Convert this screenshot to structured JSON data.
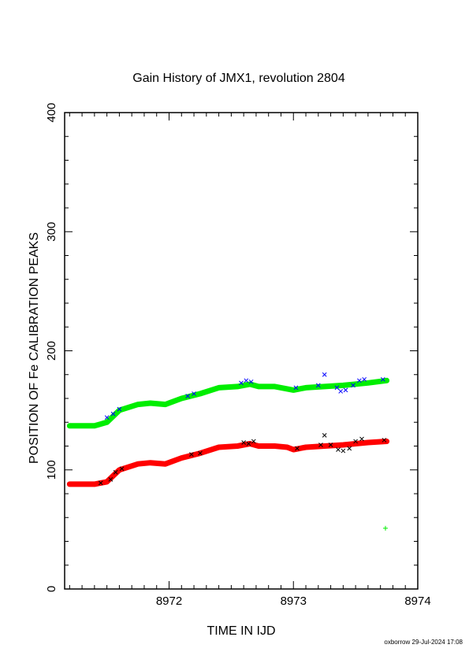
{
  "chart_data": {
    "type": "scatter",
    "title": "Gain History of JMX1, revolution 2804",
    "xlabel": "TIME IN IJD",
    "ylabel": "POSITION OF Fe CALIBRATION PEAKS",
    "footer": "oxborrow 29-Jul-2024 17:08",
    "xlim": [
      8971.16,
      8974.0
    ],
    "ylim": [
      0,
      400
    ],
    "xticks": [
      8972,
      8973,
      8974
    ],
    "xtick_labels": [
      "8972",
      "8973",
      "8974"
    ],
    "yticks": [
      0,
      100,
      200,
      300,
      400
    ],
    "ytick_labels": [
      "0",
      "100",
      "200",
      "300",
      "400"
    ],
    "series": [
      {
        "color": "#00ee00",
        "marker": "line",
        "x": [
          8971.2,
          8971.4,
          8971.5,
          8971.6,
          8971.75,
          8971.85,
          8971.97,
          8972.1,
          8972.25,
          8972.4,
          8972.55,
          8972.65,
          8972.72,
          8972.85,
          8972.95,
          8973.0,
          8973.1,
          8973.25,
          8973.4,
          8973.6,
          8973.75
        ],
        "values": [
          137,
          137,
          140,
          150,
          155,
          156,
          155,
          160,
          164,
          169,
          170,
          172,
          170,
          170,
          168,
          167,
          169,
          170,
          171,
          173,
          175
        ]
      },
      {
        "color": "#ff0000",
        "marker": "line",
        "x": [
          8971.2,
          8971.4,
          8971.5,
          8971.6,
          8971.75,
          8971.85,
          8971.97,
          8972.1,
          8972.25,
          8972.4,
          8972.55,
          8972.65,
          8972.72,
          8972.85,
          8972.95,
          8973.0,
          8973.1,
          8973.25,
          8973.4,
          8973.6,
          8973.75
        ],
        "values": [
          88,
          88,
          90,
          100,
          105,
          106,
          105,
          110,
          114,
          119,
          120,
          122,
          120,
          120,
          119,
          117,
          119,
          120,
          121,
          123,
          124
        ]
      },
      {
        "color": "#0000ff",
        "marker": "x",
        "x": [
          8971.5,
          8971.55,
          8971.6,
          8972.15,
          8972.2,
          8972.58,
          8972.62,
          8972.66,
          8973.02,
          8973.2,
          8973.25,
          8973.35,
          8973.38,
          8973.42,
          8973.48,
          8973.53,
          8973.57,
          8973.72
        ],
        "values": [
          144,
          147,
          151,
          162,
          164,
          173,
          175,
          174,
          169,
          171,
          180,
          169,
          166,
          167,
          171,
          175,
          176,
          176
        ]
      },
      {
        "color": "#000000",
        "marker": "x",
        "x": [
          8971.45,
          8971.53,
          8971.57,
          8971.62,
          8972.18,
          8972.25,
          8972.6,
          8972.64,
          8972.68,
          8973.03,
          8973.22,
          8973.25,
          8973.3,
          8973.36,
          8973.4,
          8973.45,
          8973.5,
          8973.55,
          8973.73
        ],
        "values": [
          89,
          92,
          98,
          101,
          113,
          114,
          123,
          122,
          124,
          118,
          121,
          129,
          121,
          117,
          116,
          118,
          124,
          126,
          125
        ]
      },
      {
        "color": "#00ee00",
        "marker": "plus",
        "x": [
          8973.74
        ],
        "values": [
          51
        ]
      }
    ]
  }
}
